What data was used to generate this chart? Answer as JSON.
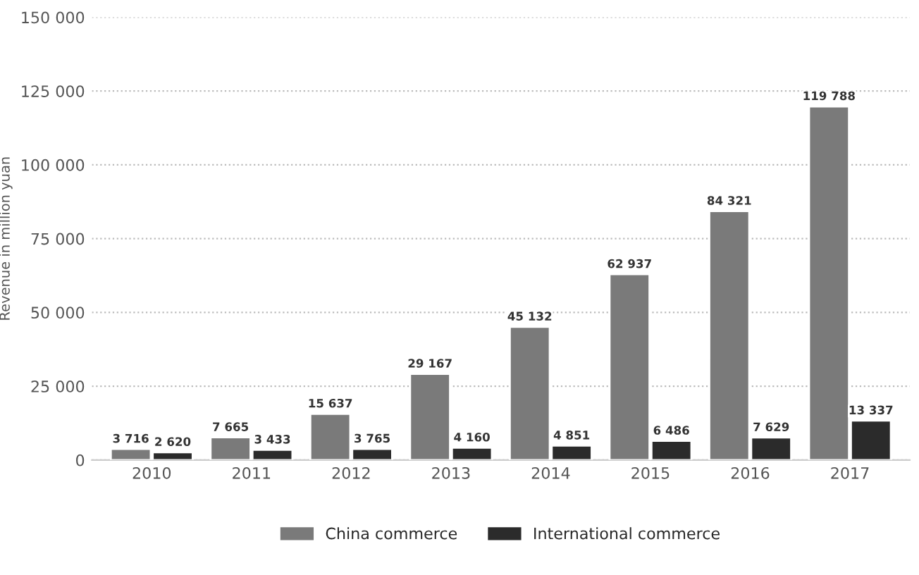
{
  "chart_data": {
    "type": "bar",
    "ylabel": "Revenue in million yuan",
    "categories": [
      "2010",
      "2011",
      "2012",
      "2013",
      "2014",
      "2015",
      "2016",
      "2017"
    ],
    "series": [
      {
        "name": "China commerce",
        "color": "#7a7a7a",
        "values": [
          3716,
          7665,
          15637,
          29167,
          45132,
          62937,
          84321,
          119788
        ],
        "value_labels": [
          "3 716",
          "7 665",
          "15 637",
          "29 167",
          "45 132",
          "62 937",
          "84 321",
          "119 788"
        ]
      },
      {
        "name": "International commerce",
        "color": "#2b2b2b",
        "values": [
          2620,
          3433,
          3765,
          4160,
          4851,
          6486,
          7629,
          13337
        ],
        "value_labels": [
          "2 620",
          "3 433",
          "3 765",
          "4 160",
          "4 851",
          "6 486",
          "7 629",
          "13 337"
        ]
      }
    ],
    "ylim": [
      0,
      150000
    ],
    "yticks": [
      {
        "value": 0,
        "label": "0"
      },
      {
        "value": 25000,
        "label": "25 000"
      },
      {
        "value": 50000,
        "label": "50 000"
      },
      {
        "value": 75000,
        "label": "75 000"
      },
      {
        "value": 100000,
        "label": "100 000"
      },
      {
        "value": 125000,
        "label": "125 000"
      },
      {
        "value": 150000,
        "label": "150 000"
      }
    ],
    "grid": "y",
    "legend": "bottom"
  }
}
